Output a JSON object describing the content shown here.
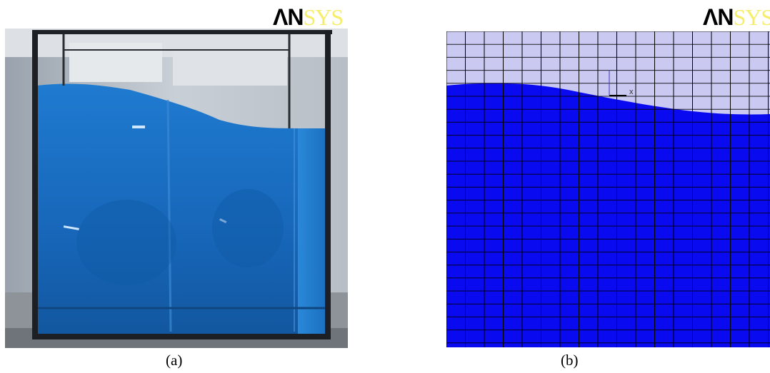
{
  "figure": {
    "panel_a": {
      "logo": {
        "part1": "ΛN",
        "part2": "SYS"
      },
      "caption": "(a)",
      "image_subject": "water-tank-photo"
    },
    "panel_b": {
      "logo": {
        "part1": "ΛN",
        "part2": "SYS"
      },
      "caption": "(b)",
      "axis_triad_label": "x",
      "image_subject": "ansys-mesh-free-surface"
    }
  },
  "colors": {
    "water_photo": "#1a73c9",
    "water_sim": "#0a0af0",
    "air_sim": "#c9c9f2",
    "mesh_line": "#000000",
    "logo_accent": "#f6ee6a"
  }
}
